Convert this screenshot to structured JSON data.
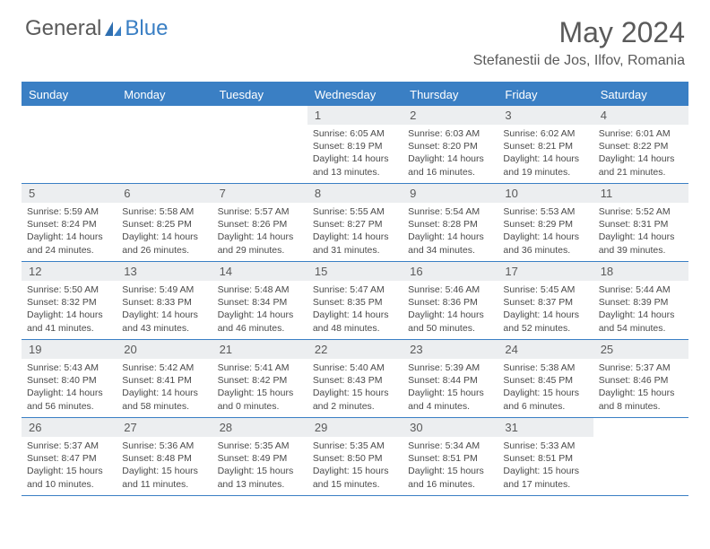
{
  "logo": {
    "text1": "General",
    "text2": "Blue"
  },
  "title": "May 2024",
  "location": "Stefanestii de Jos, Ilfov, Romania",
  "brand_color": "#3a7fc4",
  "day_bg": "#eceef0",
  "text_color": "#5a5a5a",
  "day_names": [
    "Sunday",
    "Monday",
    "Tuesday",
    "Wednesday",
    "Thursday",
    "Friday",
    "Saturday"
  ],
  "weeks": [
    [
      null,
      null,
      null,
      {
        "n": "1",
        "sr": "6:05 AM",
        "ss": "8:19 PM",
        "dl": "14 hours and 13 minutes."
      },
      {
        "n": "2",
        "sr": "6:03 AM",
        "ss": "8:20 PM",
        "dl": "14 hours and 16 minutes."
      },
      {
        "n": "3",
        "sr": "6:02 AM",
        "ss": "8:21 PM",
        "dl": "14 hours and 19 minutes."
      },
      {
        "n": "4",
        "sr": "6:01 AM",
        "ss": "8:22 PM",
        "dl": "14 hours and 21 minutes."
      }
    ],
    [
      {
        "n": "5",
        "sr": "5:59 AM",
        "ss": "8:24 PM",
        "dl": "14 hours and 24 minutes."
      },
      {
        "n": "6",
        "sr": "5:58 AM",
        "ss": "8:25 PM",
        "dl": "14 hours and 26 minutes."
      },
      {
        "n": "7",
        "sr": "5:57 AM",
        "ss": "8:26 PM",
        "dl": "14 hours and 29 minutes."
      },
      {
        "n": "8",
        "sr": "5:55 AM",
        "ss": "8:27 PM",
        "dl": "14 hours and 31 minutes."
      },
      {
        "n": "9",
        "sr": "5:54 AM",
        "ss": "8:28 PM",
        "dl": "14 hours and 34 minutes."
      },
      {
        "n": "10",
        "sr": "5:53 AM",
        "ss": "8:29 PM",
        "dl": "14 hours and 36 minutes."
      },
      {
        "n": "11",
        "sr": "5:52 AM",
        "ss": "8:31 PM",
        "dl": "14 hours and 39 minutes."
      }
    ],
    [
      {
        "n": "12",
        "sr": "5:50 AM",
        "ss": "8:32 PM",
        "dl": "14 hours and 41 minutes."
      },
      {
        "n": "13",
        "sr": "5:49 AM",
        "ss": "8:33 PM",
        "dl": "14 hours and 43 minutes."
      },
      {
        "n": "14",
        "sr": "5:48 AM",
        "ss": "8:34 PM",
        "dl": "14 hours and 46 minutes."
      },
      {
        "n": "15",
        "sr": "5:47 AM",
        "ss": "8:35 PM",
        "dl": "14 hours and 48 minutes."
      },
      {
        "n": "16",
        "sr": "5:46 AM",
        "ss": "8:36 PM",
        "dl": "14 hours and 50 minutes."
      },
      {
        "n": "17",
        "sr": "5:45 AM",
        "ss": "8:37 PM",
        "dl": "14 hours and 52 minutes."
      },
      {
        "n": "18",
        "sr": "5:44 AM",
        "ss": "8:39 PM",
        "dl": "14 hours and 54 minutes."
      }
    ],
    [
      {
        "n": "19",
        "sr": "5:43 AM",
        "ss": "8:40 PM",
        "dl": "14 hours and 56 minutes."
      },
      {
        "n": "20",
        "sr": "5:42 AM",
        "ss": "8:41 PM",
        "dl": "14 hours and 58 minutes."
      },
      {
        "n": "21",
        "sr": "5:41 AM",
        "ss": "8:42 PM",
        "dl": "15 hours and 0 minutes."
      },
      {
        "n": "22",
        "sr": "5:40 AM",
        "ss": "8:43 PM",
        "dl": "15 hours and 2 minutes."
      },
      {
        "n": "23",
        "sr": "5:39 AM",
        "ss": "8:44 PM",
        "dl": "15 hours and 4 minutes."
      },
      {
        "n": "24",
        "sr": "5:38 AM",
        "ss": "8:45 PM",
        "dl": "15 hours and 6 minutes."
      },
      {
        "n": "25",
        "sr": "5:37 AM",
        "ss": "8:46 PM",
        "dl": "15 hours and 8 minutes."
      }
    ],
    [
      {
        "n": "26",
        "sr": "5:37 AM",
        "ss": "8:47 PM",
        "dl": "15 hours and 10 minutes."
      },
      {
        "n": "27",
        "sr": "5:36 AM",
        "ss": "8:48 PM",
        "dl": "15 hours and 11 minutes."
      },
      {
        "n": "28",
        "sr": "5:35 AM",
        "ss": "8:49 PM",
        "dl": "15 hours and 13 minutes."
      },
      {
        "n": "29",
        "sr": "5:35 AM",
        "ss": "8:50 PM",
        "dl": "15 hours and 15 minutes."
      },
      {
        "n": "30",
        "sr": "5:34 AM",
        "ss": "8:51 PM",
        "dl": "15 hours and 16 minutes."
      },
      {
        "n": "31",
        "sr": "5:33 AM",
        "ss": "8:51 PM",
        "dl": "15 hours and 17 minutes."
      },
      null
    ]
  ],
  "labels": {
    "sunrise": "Sunrise:",
    "sunset": "Sunset:",
    "daylight": "Daylight:"
  }
}
